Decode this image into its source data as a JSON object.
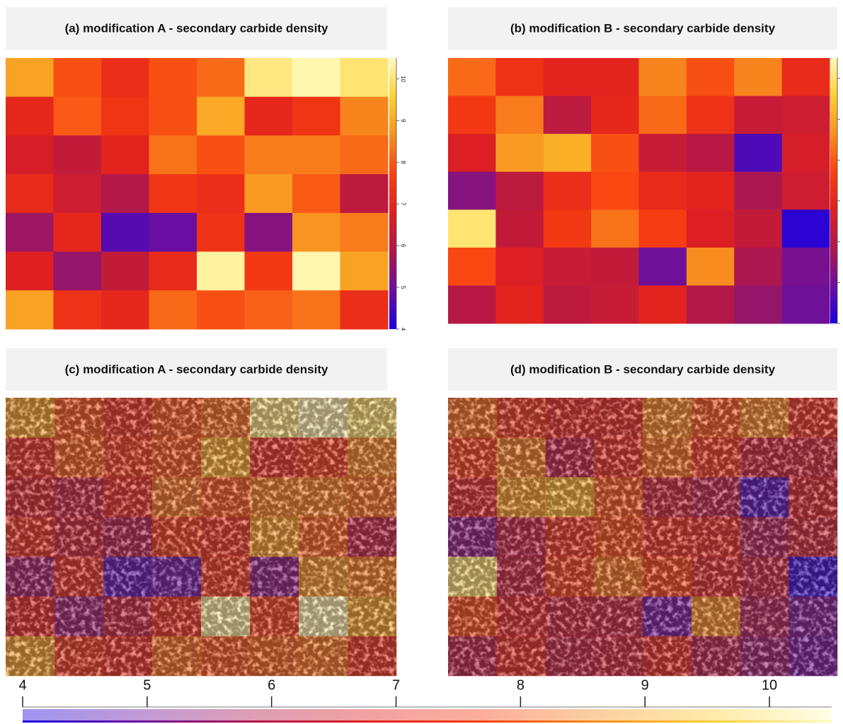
{
  "chart_data": [
    {
      "type": "heatmap",
      "title": "(a) modification A - secondary carbide density",
      "colorbar": true,
      "colorbar_labels": true,
      "values": [
        [
          8.9,
          7.9,
          7.2,
          7.9,
          8.2,
          10.1,
          10.4,
          10.0
        ],
        [
          7.0,
          8.0,
          7.4,
          7.9,
          9.0,
          7.0,
          7.4,
          8.5
        ],
        [
          6.6,
          6.2,
          6.9,
          8.3,
          7.9,
          8.4,
          8.4,
          8.2
        ],
        [
          7.1,
          6.4,
          5.9,
          7.4,
          7.2,
          8.8,
          8.0,
          6.1
        ],
        [
          5.6,
          7.0,
          4.7,
          4.9,
          7.3,
          5.3,
          8.7,
          8.4
        ],
        [
          6.8,
          5.5,
          6.2,
          7.1,
          10.3,
          7.5,
          10.4,
          8.9
        ],
        [
          8.9,
          7.3,
          7.0,
          8.2,
          7.9,
          8.1,
          8.3,
          7.2
        ]
      ]
    },
    {
      "type": "heatmap",
      "title": "(b) modification  B - secondary carbide density",
      "colorbar": true,
      "colorbar_labels": false,
      "values": [
        [
          8.2,
          7.3,
          6.9,
          6.9,
          8.5,
          7.9,
          8.5,
          7.1
        ],
        [
          7.5,
          8.4,
          6.1,
          7.0,
          8.2,
          7.3,
          6.3,
          6.4
        ],
        [
          6.7,
          8.8,
          9.1,
          7.9,
          6.3,
          6.0,
          4.6,
          6.6
        ],
        [
          5.3,
          6.1,
          7.2,
          7.8,
          7.1,
          6.9,
          5.8,
          6.4
        ],
        [
          10.0,
          6.2,
          7.5,
          8.3,
          7.6,
          6.7,
          6.2,
          4.2
        ],
        [
          7.8,
          6.7,
          6.3,
          6.2,
          5.0,
          8.6,
          5.8,
          5.1
        ],
        [
          6.0,
          6.9,
          6.1,
          6.3,
          6.9,
          5.9,
          5.5,
          5.0
        ]
      ]
    },
    {
      "type": "overlay",
      "title": "(c) modification A - secondary carbide density",
      "values": [
        [
          8.9,
          7.9,
          7.2,
          7.9,
          8.2,
          10.1,
          10.4,
          10.0
        ],
        [
          7.0,
          8.0,
          7.4,
          7.9,
          9.0,
          7.0,
          7.4,
          8.5
        ],
        [
          6.6,
          6.2,
          6.9,
          8.3,
          7.9,
          8.4,
          8.4,
          8.2
        ],
        [
          7.1,
          6.4,
          5.9,
          7.4,
          7.2,
          8.8,
          8.0,
          6.1
        ],
        [
          5.6,
          7.0,
          4.7,
          4.9,
          7.3,
          5.3,
          8.7,
          8.4
        ],
        [
          6.8,
          5.5,
          6.2,
          7.1,
          10.3,
          7.5,
          10.4,
          8.9
        ],
        [
          8.9,
          7.3,
          7.0,
          8.2,
          7.9,
          8.1,
          8.3,
          7.2
        ]
      ]
    },
    {
      "type": "overlay",
      "title": "(d) modification  B - secondary carbide density",
      "values": [
        [
          8.2,
          7.3,
          6.9,
          6.9,
          8.5,
          7.9,
          8.5,
          7.1
        ],
        [
          7.5,
          8.4,
          6.1,
          7.0,
          8.2,
          7.3,
          6.3,
          6.4
        ],
        [
          6.7,
          8.8,
          9.1,
          7.9,
          6.3,
          6.0,
          4.6,
          6.6
        ],
        [
          5.3,
          6.1,
          7.2,
          7.8,
          7.1,
          6.9,
          5.8,
          6.4
        ],
        [
          10.0,
          6.2,
          7.5,
          8.3,
          7.6,
          6.7,
          6.2,
          4.2
        ],
        [
          7.8,
          6.7,
          6.3,
          6.2,
          5.0,
          8.6,
          5.8,
          5.1
        ],
        [
          6.0,
          6.9,
          6.1,
          6.3,
          6.9,
          5.9,
          5.5,
          5.0
        ]
      ]
    },
    {
      "type": "colorbar",
      "xlim": [
        4,
        10.5
      ],
      "xticks": [
        4,
        5,
        6,
        7,
        8,
        9,
        10
      ],
      "colors": [
        "#1a00e0",
        "#6a0fa0",
        "#b0184a",
        "#e02020",
        "#f84010",
        "#f89020",
        "#ffd030",
        "#fffbc0"
      ]
    }
  ]
}
